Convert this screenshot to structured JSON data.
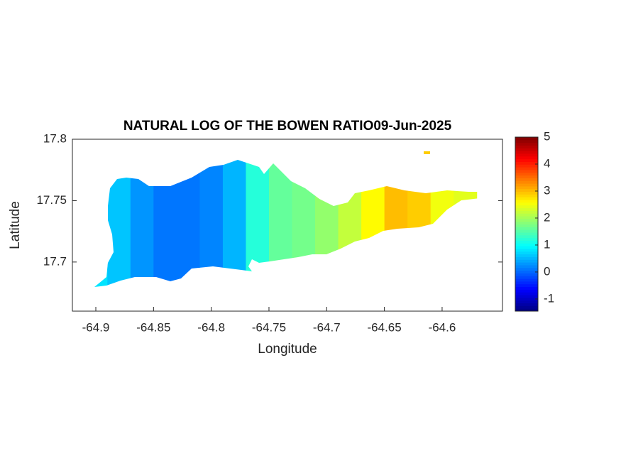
{
  "chart_data": {
    "type": "heatmap",
    "title": "NATURAL LOG OF THE BOWEN RATIO09-Jun-2025",
    "xlabel": "Longitude",
    "ylabel": "Latitude",
    "x": [
      -64.9,
      -64.88,
      -64.86,
      -64.84,
      -64.82,
      -64.8,
      -64.78,
      -64.76,
      -64.74,
      -64.72,
      -64.7,
      -64.68,
      -64.66,
      -64.64,
      -64.62,
      -64.6,
      -64.58
    ],
    "values": [
      0.8,
      0.6,
      0.3,
      0.1,
      0.1,
      0.2,
      0.5,
      1.2,
      1.6,
      1.7,
      1.9,
      2.2,
      2.6,
      3.0,
      2.9,
      2.5,
      2.4
    ],
    "xlim": [
      -64.9203,
      -64.5477
    ],
    "ylim": [
      17.66,
      17.8
    ],
    "xticks": [
      -64.9,
      -64.85,
      -64.8,
      -64.75,
      -64.7,
      -64.65,
      -64.6
    ],
    "yticks": [
      17.7,
      17.75,
      17.8
    ],
    "colormap": "jet",
    "clim": [
      -1.45,
      5
    ],
    "cticks": [
      -1,
      0,
      1,
      2,
      3,
      4,
      5
    ]
  }
}
